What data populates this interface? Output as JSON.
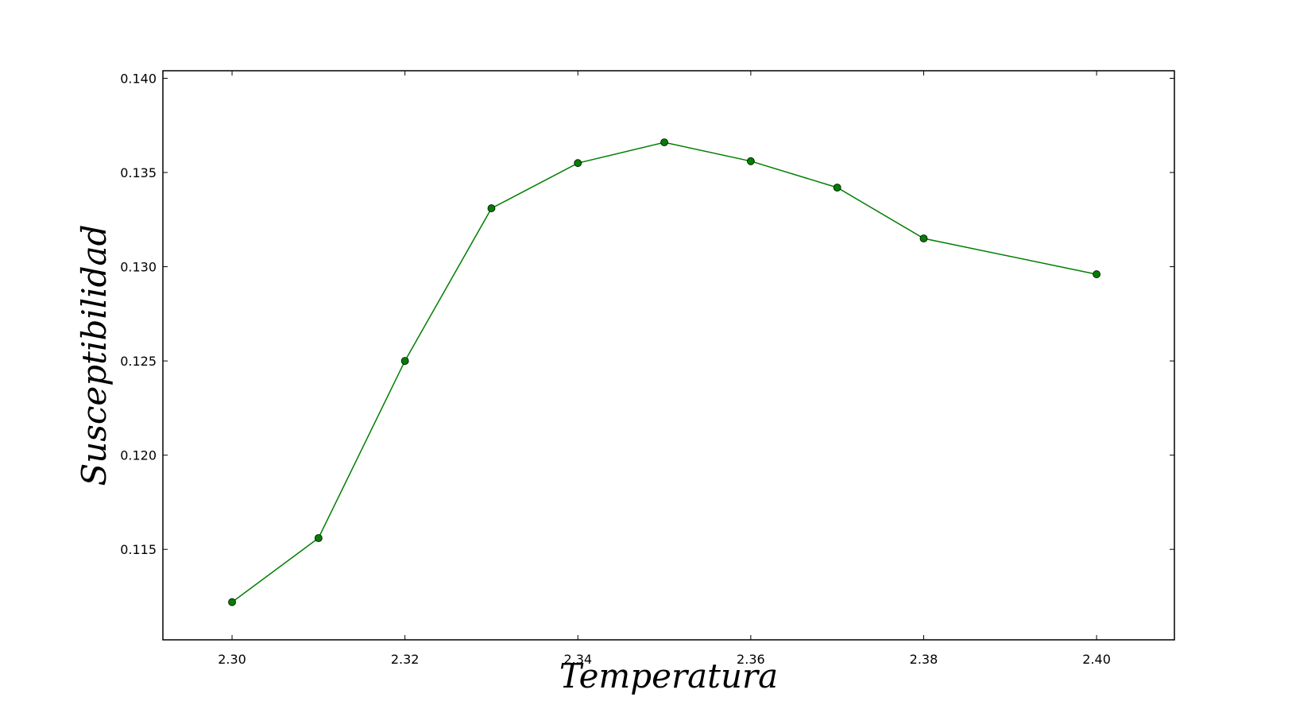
{
  "chart_data": {
    "type": "line",
    "title": "",
    "xlabel": "Temperatura",
    "ylabel": "Susceptibilidad",
    "xlim": [
      2.292,
      2.409
    ],
    "ylim": [
      0.1102,
      0.1404
    ],
    "x_ticks": [
      "2.30",
      "2.32",
      "2.34",
      "2.36",
      "2.38",
      "2.40"
    ],
    "y_ticks": [
      "0.115",
      "0.120",
      "0.125",
      "0.130",
      "0.135",
      "0.140"
    ],
    "grid": false,
    "legend": "none",
    "series": [
      {
        "color": "#007f00",
        "marker": "circle",
        "x": [
          2.3,
          2.31,
          2.32,
          2.33,
          2.34,
          2.35,
          2.36,
          2.37,
          2.38,
          2.4
        ],
        "y": [
          0.1122,
          0.1156,
          0.125,
          0.1331,
          0.1355,
          0.1366,
          0.1356,
          0.1342,
          0.1315,
          0.1296
        ]
      }
    ]
  }
}
